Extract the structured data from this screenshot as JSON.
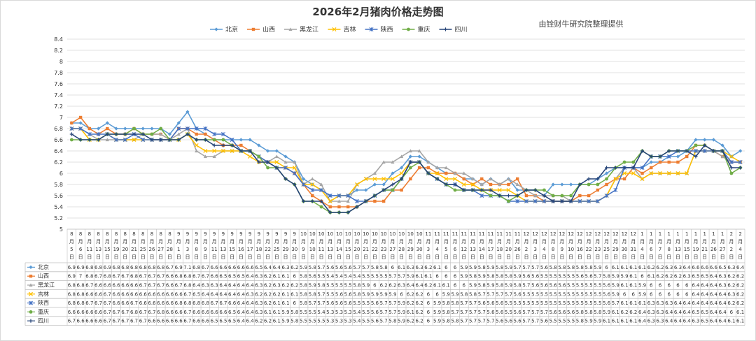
{
  "chart_data": {
    "type": "line",
    "title": "2026年2月猪肉价格走势图",
    "credit": "由铨财牛研究院整理提供",
    "ylim": [
      5,
      8.4
    ],
    "yticks": [
      "8.4",
      "8.2",
      "8",
      "7.8",
      "7.6",
      "7.4",
      "7.2",
      "7",
      "6.8",
      "6.6",
      "6.4",
      "6.2",
      "6",
      "5.8",
      "5.6",
      "5.4",
      "5.2",
      "5"
    ],
    "grid": true,
    "legend_position": "top-center",
    "categories": [
      [
        "8",
        "月",
        "5",
        "日"
      ],
      [
        "8",
        "月",
        "6",
        "日"
      ],
      [
        "8",
        "月",
        "11",
        "日"
      ],
      [
        "8",
        "月",
        "13",
        "日"
      ],
      [
        "8",
        "月",
        "15",
        "日"
      ],
      [
        "8",
        "月",
        "19",
        "日"
      ],
      [
        "8",
        "月",
        "20",
        "日"
      ],
      [
        "8",
        "月",
        "21",
        "日"
      ],
      [
        "8",
        "月",
        "25",
        "日"
      ],
      [
        "8",
        "月",
        "26",
        "日"
      ],
      [
        "8",
        "月",
        "27",
        "日"
      ],
      [
        "8",
        "月",
        "28",
        "日"
      ],
      [
        "9",
        "月",
        "1",
        "日"
      ],
      [
        "9",
        "月",
        "3",
        "日"
      ],
      [
        "9",
        "月",
        "8",
        "日"
      ],
      [
        "9",
        "月",
        "9",
        "日"
      ],
      [
        "9",
        "月",
        "11",
        "日"
      ],
      [
        "9",
        "月",
        "13",
        "日"
      ],
      [
        "9",
        "月",
        "15",
        "日"
      ],
      [
        "9",
        "月",
        "16",
        "日"
      ],
      [
        "9",
        "月",
        "17",
        "日"
      ],
      [
        "9",
        "月",
        "18",
        "日"
      ],
      [
        "9",
        "月",
        "22",
        "日"
      ],
      [
        "9",
        "月",
        "25",
        "日"
      ],
      [
        "9",
        "月",
        "29",
        "日"
      ],
      [
        "9",
        "月",
        "30",
        "日"
      ],
      [
        "10",
        "月",
        "9",
        "日"
      ],
      [
        "10",
        "月",
        "10",
        "日"
      ],
      [
        "10",
        "月",
        "11",
        "日"
      ],
      [
        "10",
        "月",
        "13",
        "日"
      ],
      [
        "10",
        "月",
        "14",
        "日"
      ],
      [
        "10",
        "月",
        "15",
        "日"
      ],
      [
        "10",
        "月",
        "20",
        "日"
      ],
      [
        "10",
        "月",
        "21",
        "日"
      ],
      [
        "10",
        "月",
        "22",
        "日"
      ],
      [
        "10",
        "月",
        "23",
        "日"
      ],
      [
        "10",
        "月",
        "27",
        "日"
      ],
      [
        "10",
        "月",
        "28",
        "日"
      ],
      [
        "10",
        "月",
        "29",
        "日"
      ],
      [
        "10",
        "月",
        "30",
        "日"
      ],
      [
        "11",
        "月",
        "3",
        "日"
      ],
      [
        "11",
        "月",
        "4",
        "日"
      ],
      [
        "11",
        "月",
        "5",
        "日"
      ],
      [
        "11",
        "月",
        "6",
        "日"
      ],
      [
        "11",
        "月",
        "12",
        "日"
      ],
      [
        "11",
        "月",
        "13",
        "日"
      ],
      [
        "11",
        "月",
        "14",
        "日"
      ],
      [
        "11",
        "月",
        "17",
        "日"
      ],
      [
        "11",
        "月",
        "18",
        "日"
      ],
      [
        "11",
        "月",
        "20",
        "日"
      ],
      [
        "11",
        "月",
        "26",
        "日"
      ],
      [
        "12",
        "月",
        "2",
        "日"
      ],
      [
        "12",
        "月",
        "3",
        "日"
      ],
      [
        "12",
        "月",
        "4",
        "日"
      ],
      [
        "12",
        "月",
        "8",
        "日"
      ],
      [
        "12",
        "月",
        "9",
        "日"
      ],
      [
        "12",
        "月",
        "10",
        "日"
      ],
      [
        "12",
        "月",
        "16",
        "日"
      ],
      [
        "12",
        "月",
        "22",
        "日"
      ],
      [
        "12",
        "月",
        "23",
        "日"
      ],
      [
        "12",
        "月",
        "25",
        "日"
      ],
      [
        "12",
        "月",
        "29",
        "日"
      ],
      [
        "12",
        "月",
        "30",
        "日"
      ],
      [
        "12",
        "月",
        "31",
        "日"
      ],
      [
        "1",
        "月",
        "4",
        "日"
      ],
      [
        "1",
        "月",
        "6",
        "日"
      ],
      [
        "1",
        "月",
        "7",
        "日"
      ],
      [
        "1",
        "月",
        "8",
        "日"
      ],
      [
        "1",
        "月",
        "13",
        "日"
      ],
      [
        "1",
        "月",
        "15",
        "日"
      ],
      [
        "1",
        "月",
        "19",
        "日"
      ],
      [
        "1",
        "月",
        "21",
        "日"
      ],
      [
        "1",
        "月",
        "26",
        "日"
      ],
      [
        "1",
        "月",
        "27",
        "日"
      ],
      [
        "2",
        "月",
        "2",
        "日"
      ],
      [
        "2",
        "月",
        "4",
        "日"
      ]
    ],
    "series": [
      {
        "name": "北京",
        "color": "#5b9bd5",
        "marker": "diamond",
        "values": [
          6.9,
          6.9,
          6.8,
          6.8,
          6.9,
          6.8,
          6.8,
          6.8,
          6.8,
          6.8,
          6.8,
          6.7,
          6.9,
          7.1,
          6.8,
          6.7,
          6.6,
          6.6,
          6.6,
          6.6,
          6.6,
          6.5,
          6.4,
          6.4,
          6.3,
          6.2,
          5.9,
          5.8,
          5.7,
          5.6,
          5.6,
          5.6,
          5.7,
          5.7,
          5.8,
          5.8,
          6.0,
          6.1,
          6.3,
          6.3,
          6.2,
          6.1,
          6.0,
          6.0,
          5.9,
          5.9,
          5.8,
          5.9,
          5.8,
          5.9,
          5.7,
          5.7,
          5.7,
          5.6,
          5.8,
          5.8,
          5.8,
          5.8,
          5.8,
          5.9,
          6.0,
          6.1,
          6.1,
          6.1,
          6.1,
          6.2,
          6.2,
          6.3,
          6.3,
          6.4,
          6.6,
          6.6,
          6.6,
          6.5,
          6.3,
          6.4
        ]
      },
      {
        "name": "山西",
        "color": "#ed7d31",
        "marker": "square",
        "values": [
          6.9,
          7.0,
          6.8,
          6.7,
          6.8,
          6.7,
          6.7,
          6.8,
          6.7,
          6.7,
          6.7,
          6.6,
          6.8,
          6.8,
          6.7,
          6.7,
          6.6,
          6.5,
          6.5,
          6.5,
          6.4,
          6.3,
          6.2,
          6.1,
          6.1,
          6.0,
          5.8,
          5.6,
          5.5,
          5.4,
          5.4,
          5.4,
          5.4,
          5.5,
          5.5,
          5.5,
          5.7,
          5.7,
          5.9,
          6.1,
          6.1,
          6.0,
          6.0,
          6.0,
          5.9,
          5.8,
          5.9,
          5.8,
          5.8,
          5.8,
          5.9,
          5.6,
          5.6,
          5.5,
          5.5,
          5.5,
          5.5,
          5.6,
          5.6,
          5.7,
          5.8,
          5.9,
          5.9,
          6.1,
          6.0,
          6.1,
          6.2,
          6.2,
          6.2,
          6.3,
          6.5,
          6.5,
          6.4,
          6.3,
          6.2,
          6.2
        ]
      },
      {
        "name": "黑龙江",
        "color": "#a5a5a5",
        "marker": "triangle",
        "values": [
          6.8,
          6.8,
          6.7,
          6.6,
          6.6,
          6.6,
          6.6,
          6.6,
          6.7,
          6.7,
          6.7,
          6.6,
          6.7,
          6.8,
          6.4,
          6.3,
          6.3,
          6.4,
          6.4,
          6.4,
          6.4,
          6.3,
          6.2,
          6.3,
          6.2,
          6.2,
          5.8,
          5.9,
          5.8,
          5.5,
          5.5,
          5.5,
          5.8,
          5.9,
          6.0,
          6.2,
          6.2,
          6.3,
          6.4,
          6.4,
          6.2,
          6.1,
          6.1,
          6.0,
          6.0,
          5.9,
          5.8,
          5.9,
          5.8,
          5.9,
          5.8,
          5.7,
          5.6,
          5.6,
          5.6,
          5.6,
          5.5,
          5.5,
          5.5,
          5.5,
          5.6,
          5.9,
          6.1,
          6.1,
          5.9,
          6.0,
          6.0,
          6.0,
          6.0,
          6.0,
          6.4,
          6.4,
          6.4,
          6.3,
          6.2,
          6.2
        ]
      },
      {
        "name": "吉林",
        "color": "#ffc000",
        "marker": "x",
        "values": [
          6.8,
          6.8,
          6.6,
          6.6,
          6.7,
          6.6,
          6.6,
          6.6,
          6.6,
          6.6,
          6.6,
          6.6,
          6.6,
          6.7,
          6.5,
          6.4,
          6.4,
          6.4,
          6.4,
          6.4,
          6.3,
          6.2,
          6.2,
          6.2,
          6.1,
          6.1,
          5.8,
          5.8,
          5.7,
          5.5,
          5.6,
          5.6,
          5.8,
          5.9,
          5.9,
          5.9,
          5.9,
          6.0,
          6.2,
          6.2,
          6.0,
          6.0,
          5.9,
          5.9,
          5.8,
          5.8,
          5.7,
          5.7,
          5.7,
          5.7,
          5.6,
          5.5,
          5.5,
          5.5,
          5.5,
          5.5,
          5.5,
          5.5,
          5.5,
          5.5,
          5.6,
          5.9,
          6.0,
          6.0,
          5.9,
          6.0,
          6.0,
          6.0,
          6.0,
          6.0,
          6.4,
          6.4,
          6.4,
          6.4,
          6.3,
          6.2
        ]
      },
      {
        "name": "陕西",
        "color": "#4472c4",
        "marker": "star",
        "values": [
          6.8,
          6.8,
          6.7,
          6.7,
          6.7,
          6.6,
          6.6,
          6.7,
          6.6,
          6.6,
          6.6,
          6.6,
          6.8,
          6.8,
          6.8,
          6.8,
          6.7,
          6.7,
          6.6,
          6.4,
          6.4,
          6.3,
          6.2,
          6.1,
          6.1,
          6.0,
          5.8,
          5.7,
          5.7,
          5.6,
          5.6,
          5.6,
          5.5,
          5.5,
          5.6,
          5.7,
          5.7,
          5.9,
          6.2,
          6.2,
          6.0,
          5.9,
          5.8,
          5.8,
          5.7,
          5.7,
          5.6,
          5.6,
          5.6,
          5.5,
          5.5,
          5.5,
          5.5,
          5.5,
          5.5,
          5.5,
          5.5,
          5.5,
          5.5,
          5.5,
          5.6,
          5.7,
          6.1,
          6.1,
          6.1,
          6.3,
          6.3,
          6.3,
          6.4,
          6.4,
          6.4,
          6.4,
          6.4,
          6.4,
          6.2,
          6.2
        ]
      },
      {
        "name": "重庆",
        "color": "#70ad47",
        "marker": "circle",
        "values": [
          6.6,
          6.6,
          6.6,
          6.6,
          6.7,
          6.7,
          6.7,
          6.8,
          6.7,
          6.7,
          6.8,
          6.6,
          6.6,
          6.7,
          6.6,
          6.6,
          6.6,
          6.6,
          6.5,
          6.4,
          6.4,
          6.3,
          6.1,
          6.1,
          5.9,
          5.8,
          5.5,
          5.5,
          5.4,
          5.3,
          5.3,
          5.3,
          5.4,
          5.5,
          5.6,
          5.7,
          5.7,
          5.9,
          6.1,
          6.2,
          6.0,
          5.9,
          5.8,
          5.7,
          5.7,
          5.7,
          5.7,
          5.6,
          5.6,
          5.5,
          5.6,
          5.7,
          5.7,
          5.7,
          5.6,
          5.6,
          5.6,
          5.8,
          5.8,
          5.8,
          5.9,
          6.1,
          6.2,
          6.2,
          6.4,
          6.3,
          6.3,
          6.4,
          6.4,
          6.4,
          6.5,
          6.5,
          6.4,
          6.4,
          6.0,
          6.1
        ]
      },
      {
        "name": "四川",
        "color": "#264478",
        "marker": "plus",
        "values": [
          6.7,
          6.6,
          6.6,
          6.6,
          6.7,
          6.7,
          6.7,
          6.7,
          6.7,
          6.6,
          6.6,
          6.6,
          6.6,
          6.7,
          6.6,
          6.6,
          6.5,
          6.5,
          6.5,
          6.4,
          6.4,
          6.2,
          6.2,
          6.1,
          5.9,
          5.8,
          5.5,
          5.5,
          5.5,
          5.3,
          5.3,
          5.3,
          5.4,
          5.5,
          5.6,
          5.7,
          5.8,
          5.9,
          6.2,
          6.2,
          6.0,
          5.9,
          5.8,
          5.8,
          5.7,
          5.7,
          5.7,
          5.7,
          5.6,
          5.6,
          5.6,
          5.7,
          5.7,
          5.6,
          5.5,
          5.5,
          5.5,
          5.8,
          5.9,
          5.9,
          6.1,
          6.1,
          6.1,
          6.1,
          6.4,
          6.3,
          6.3,
          6.4,
          6.4,
          6.4,
          6.3,
          6.5,
          6.4,
          6.4,
          6.1,
          6.1
        ]
      }
    ]
  }
}
